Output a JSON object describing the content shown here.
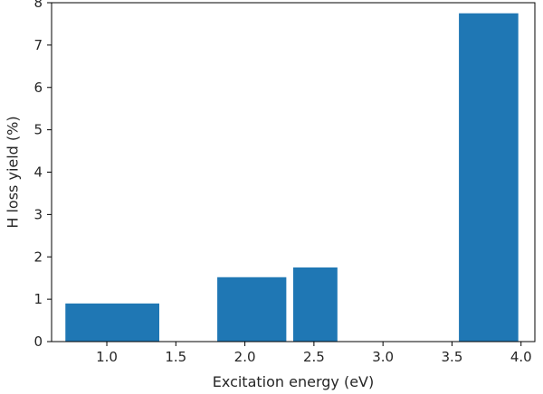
{
  "chart_data": {
    "type": "bar",
    "bars": [
      {
        "x_start": 0.7,
        "x_end": 1.38,
        "value": 0.9
      },
      {
        "x_start": 1.8,
        "x_end": 2.3,
        "value": 1.52
      },
      {
        "x_start": 2.35,
        "x_end": 2.67,
        "value": 1.75
      },
      {
        "x_start": 3.55,
        "x_end": 3.98,
        "value": 7.75
      }
    ],
    "xlabel": "Excitation energy (eV)",
    "ylabel": "H loss yield (%)",
    "xlim": [
      0.6,
      4.1
    ],
    "ylim": [
      0,
      8
    ],
    "xticks": [
      "1.0",
      "1.5",
      "2.0",
      "2.5",
      "3.0",
      "3.5",
      "4.0"
    ],
    "xtick_values": [
      1.0,
      1.5,
      2.0,
      2.5,
      3.0,
      3.5,
      4.0
    ],
    "yticks": [
      "0",
      "1",
      "2",
      "3",
      "4",
      "5",
      "6",
      "7",
      "8"
    ],
    "ytick_values": [
      0,
      1,
      2,
      3,
      4,
      5,
      6,
      7,
      8
    ],
    "grid": false,
    "legend": "none",
    "bar_color": "#1f77b4"
  }
}
